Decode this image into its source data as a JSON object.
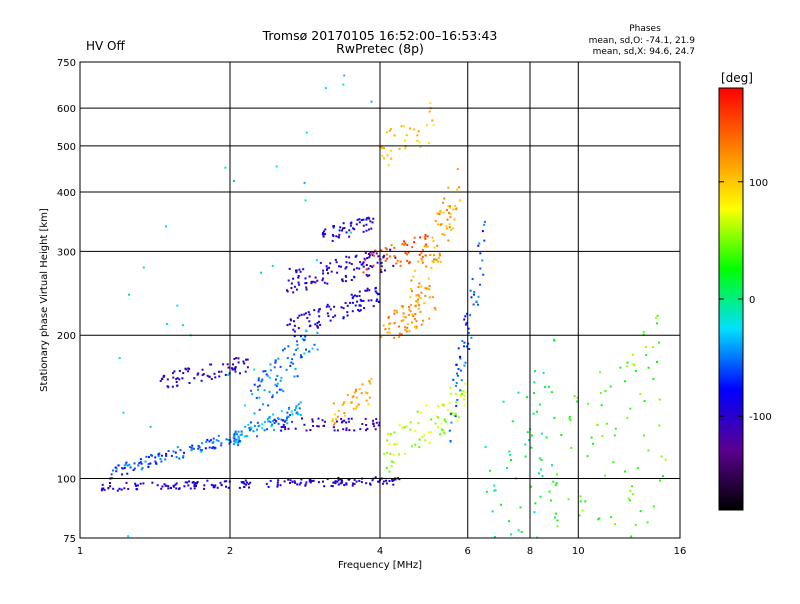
{
  "header": {
    "status": "HV Off",
    "status_color": "#cc0000",
    "title": "Tromsø 20170105 16:52:00–16:53:43",
    "subtitle": "RwPretec (8p)",
    "phase_title": "Phases",
    "phase_o": "mean, sd,O: -74.1, 21.9",
    "phase_x": "mean, sd,X:  94.6, 24.7"
  },
  "colorbar": {
    "unit": "[deg]",
    "ticks": [
      {
        "value": 100,
        "label": "100"
      },
      {
        "value": 0,
        "label": "0"
      },
      {
        "value": -100,
        "label": "-100"
      }
    ],
    "range": [
      -180,
      180
    ],
    "stops": [
      "#000000",
      "#5a0090",
      "#0000ff",
      "#00e0ff",
      "#00ff00",
      "#ffff00",
      "#ff8000",
      "#ff0000"
    ]
  },
  "chart_data": {
    "type": "scatter",
    "xlabel": "Frequency [MHz]",
    "ylabel": "Stationary phase Virtual Height [km]",
    "x_scale": "log",
    "y_scale": "log",
    "xlim": [
      1,
      16
    ],
    "ylim": [
      75,
      750
    ],
    "x_ticks": [
      {
        "value": 1,
        "label": "1"
      },
      {
        "value": 2,
        "label": "2"
      },
      {
        "value": 4,
        "label": "4"
      },
      {
        "value": 6,
        "label": "6"
      },
      {
        "value": 8,
        "label": "8"
      },
      {
        "value": 10,
        "label": "10"
      },
      {
        "value": 16,
        "label": "16"
      }
    ],
    "y_ticks": [
      {
        "value": 75,
        "label": "75"
      },
      {
        "value": 100,
        "label": "100"
      },
      {
        "value": 200,
        "label": "200"
      },
      {
        "value": 300,
        "label": "300"
      },
      {
        "value": 400,
        "label": "400"
      },
      {
        "value": 500,
        "label": "500"
      },
      {
        "value": 600,
        "label": "600"
      },
      {
        "value": 750,
        "label": "750"
      }
    ],
    "grid": true,
    "traces": [
      {
        "f_start": 1.1,
        "f_end": 4.4,
        "h_start": 96,
        "h_end": 99,
        "phase": -95,
        "spread": 2,
        "count": 180
      },
      {
        "f_start": 1.15,
        "f_end": 2.2,
        "h_start": 103,
        "h_end": 125,
        "phase": -60,
        "spread": 3,
        "count": 110
      },
      {
        "f_start": 2.0,
        "f_end": 2.8,
        "h_start": 120,
        "h_end": 140,
        "phase": -40,
        "spread": 4,
        "count": 80
      },
      {
        "f_start": 1.45,
        "f_end": 2.2,
        "h_start": 160,
        "h_end": 175,
        "phase": -100,
        "spread": 4,
        "count": 70
      },
      {
        "f_start": 2.2,
        "f_end": 3.0,
        "h_start": 145,
        "h_end": 200,
        "phase": -50,
        "spread": 10,
        "count": 80
      },
      {
        "f_start": 2.4,
        "f_end": 4.0,
        "h_start": 130,
        "h_end": 130,
        "phase": -105,
        "spread": 3,
        "count": 60
      },
      {
        "f_start": 3.2,
        "f_end": 3.9,
        "h_start": 135,
        "h_end": 155,
        "phase": 110,
        "spread": 6,
        "count": 40
      },
      {
        "f_start": 2.6,
        "f_end": 4.3,
        "h_start": 260,
        "h_end": 290,
        "phase": -100,
        "spread": 6,
        "count": 110
      },
      {
        "f_start": 2.6,
        "f_end": 4.0,
        "h_start": 205,
        "h_end": 245,
        "phase": -95,
        "spread": 5,
        "count": 90
      },
      {
        "f_start": 3.0,
        "f_end": 3.9,
        "h_start": 320,
        "h_end": 345,
        "phase": -90,
        "spread": 4,
        "count": 50
      },
      {
        "f_start": 3.7,
        "f_end": 5.0,
        "h_start": 280,
        "h_end": 310,
        "phase": 150,
        "spread": 6,
        "count": 50
      },
      {
        "f_start": 4.0,
        "f_end": 5.2,
        "h_start": 200,
        "h_end": 240,
        "phase": 120,
        "spread": 8,
        "count": 60
      },
      {
        "f_start": 4.6,
        "f_end": 5.8,
        "h_start": 230,
        "h_end": 420,
        "phase": 115,
        "spread": 14,
        "count": 90
      },
      {
        "f_start": 4.0,
        "f_end": 5.2,
        "h_start": 480,
        "h_end": 570,
        "phase": 100,
        "spread": 10,
        "count": 35
      },
      {
        "f_start": 4.0,
        "f_end": 6.0,
        "h_start": 110,
        "h_end": 150,
        "phase": 60,
        "spread": 10,
        "count": 80
      },
      {
        "f_start": 5.5,
        "f_end": 6.5,
        "h_start": 130,
        "h_end": 320,
        "phase": -60,
        "spread": 14,
        "count": 60
      },
      {
        "f_start": 6.5,
        "f_end": 9.0,
        "h_start": 80,
        "h_end": 130,
        "phase": 10,
        "spread": 60,
        "count": 90
      },
      {
        "f_start": 9.0,
        "f_end": 15.0,
        "h_start": 80,
        "h_end": 140,
        "phase": 40,
        "spread": 70,
        "count": 120
      },
      {
        "f_start": 1.2,
        "f_end": 4.0,
        "h_start": 180,
        "h_end": 600,
        "phase": -20,
        "spread": 60,
        "count": 30
      }
    ]
  }
}
